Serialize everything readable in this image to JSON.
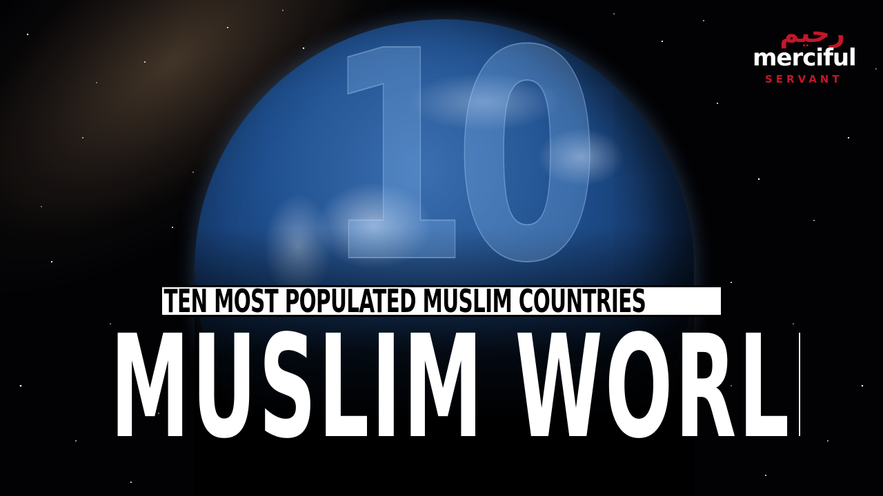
{
  "image": {
    "big_number": "10",
    "subtitle": "TEN MOST POPULATED MUSLIM COUNTRIES",
    "title": "MUSLIM WORLD"
  },
  "logo": {
    "arabic": "رحيم",
    "name": "merciful",
    "tagline": "SERVANT",
    "accent_color": "#c4162a"
  }
}
